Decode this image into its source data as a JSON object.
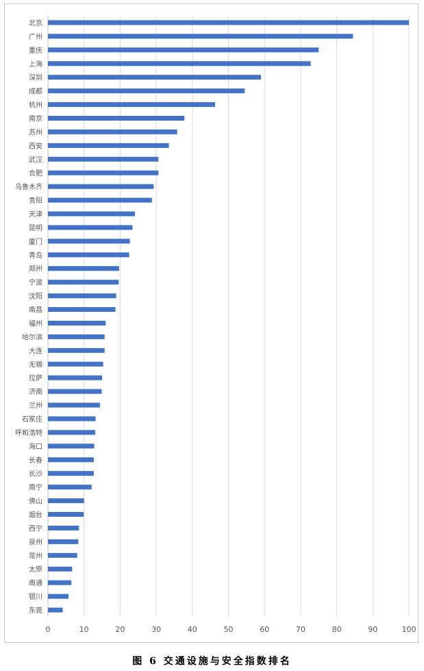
{
  "caption": "图 6    交通设施与安全指数排名",
  "chart_data": {
    "type": "bar",
    "orientation": "horizontal",
    "title": "",
    "xlabel": "",
    "ylabel": "",
    "xlim": [
      0,
      100
    ],
    "xticks": [
      0,
      10,
      20,
      30,
      40,
      50,
      60,
      70,
      80,
      90,
      100
    ],
    "grid": "vertical",
    "legend": "none",
    "bar_color": "#4472C4",
    "categories": [
      "北京",
      "广州",
      "重庆",
      "上海",
      "深圳",
      "成都",
      "杭州",
      "南京",
      "苏州",
      "西安",
      "武汉",
      "合肥",
      "乌鲁木齐",
      "贵阳",
      "天津",
      "昆明",
      "厦门",
      "青岛",
      "郑州",
      "宁波",
      "沈阳",
      "南昌",
      "福州",
      "哈尔滨",
      "大连",
      "无锡",
      "拉萨",
      "济南",
      "兰州",
      "石家庄",
      "呼和浩特",
      "海口",
      "长春",
      "长沙",
      "南宁",
      "佛山",
      "烟台",
      "西宁",
      "泉州",
      "常州",
      "太原",
      "南通",
      "银川",
      "东莞"
    ],
    "values": [
      100,
      84.5,
      75,
      72.8,
      59,
      54.5,
      46.3,
      37.8,
      35.8,
      33.5,
      30.6,
      30.6,
      29.3,
      28.8,
      24.1,
      23.4,
      22.7,
      22.5,
      19.7,
      19.6,
      18.9,
      18.7,
      16,
      15.7,
      15.7,
      15.3,
      15,
      14.9,
      14.4,
      13.2,
      13.1,
      12.8,
      12.7,
      12.7,
      12.1,
      10,
      9.9,
      8.6,
      8.4,
      8.1,
      6.7,
      6.5,
      5.7,
      4.1
    ]
  }
}
